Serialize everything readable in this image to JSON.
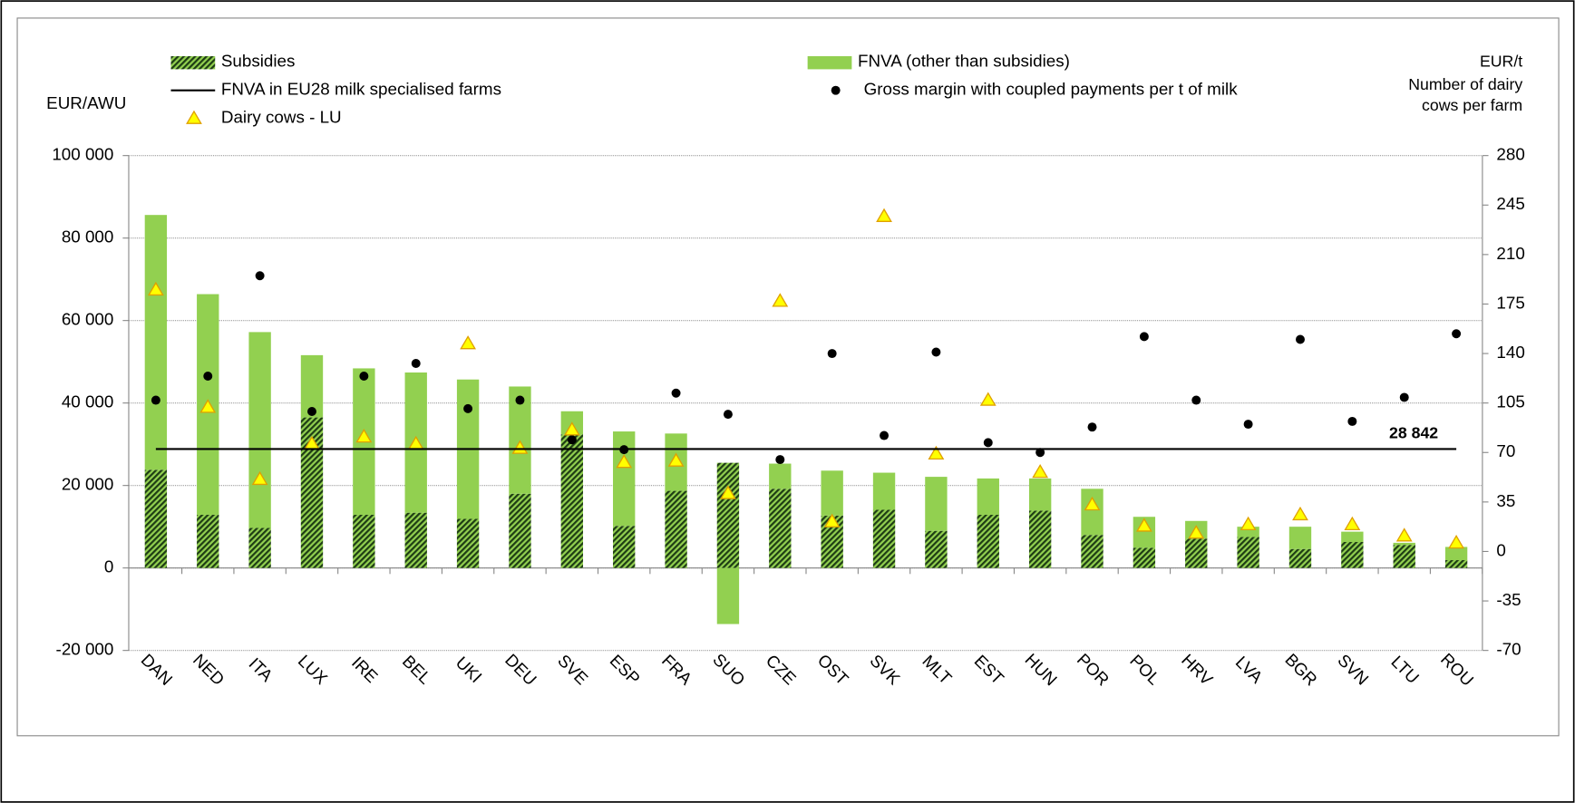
{
  "chart_data": {
    "type": "bar",
    "y_axis_label": "EUR/AWU",
    "y2_axis_label": [
      "EUR/t",
      "Number  of dairy",
      "cows per farm"
    ],
    "categories": [
      "DAN",
      "NED",
      "ITA",
      "LUX",
      "IRE",
      "BEL",
      "UKI",
      "DEU",
      "SVE",
      "ESP",
      "FRA",
      "SUO",
      "CZE",
      "OST",
      "SVK",
      "MLT",
      "EST",
      "HUN",
      "POR",
      "POL",
      "HRV",
      "LVA",
      "BGR",
      "SVN",
      "LTU",
      "ROU"
    ],
    "ylim": [
      -20000,
      100000
    ],
    "yticks": [
      {
        "value": -20000,
        "label": "-20 000"
      },
      0,
      {
        "value": 20000,
        "label": "20 000"
      },
      {
        "value": 40000,
        "label": "40 000"
      },
      {
        "value": 60000,
        "label": "60 000"
      },
      {
        "value": 80000,
        "label": "80 000"
      },
      {
        "value": 100000,
        "label": "100 000"
      }
    ],
    "y2lim": [
      -70,
      280
    ],
    "y2ticks": [
      -70,
      -35,
      0,
      35,
      70,
      105,
      140,
      175,
      210,
      245,
      280
    ],
    "grid": true,
    "series": [
      {
        "name": "Subsidies",
        "type": "bar",
        "color": "#92d050",
        "pattern": "diagonal-hatch",
        "values": [
          23800,
          12900,
          9700,
          36500,
          12900,
          13400,
          11900,
          18000,
          32400,
          10200,
          18700,
          25500,
          19200,
          12700,
          14100,
          9000,
          12900,
          13900,
          8000,
          4900,
          7100,
          7500,
          4600,
          6300,
          5600,
          1900
        ]
      },
      {
        "name": "FNVA (other than subsidies)",
        "type": "bar",
        "color": "#92d050",
        "values": [
          61800,
          53500,
          47500,
          15100,
          35500,
          34000,
          33800,
          26000,
          5600,
          22900,
          13900,
          -13600,
          6100,
          10900,
          9000,
          13100,
          8800,
          7800,
          11200,
          7500,
          4300,
          2500,
          5400,
          2500,
          500,
          3200
        ]
      },
      {
        "name": "Gross margin with coupled payments per t of milk",
        "type": "scatter",
        "marker": "circle",
        "axis": "y2",
        "color": "#000000",
        "values": [
          107,
          124,
          195,
          99,
          124,
          133,
          101,
          107,
          79,
          72,
          112,
          97,
          65,
          140,
          82,
          141,
          77,
          70,
          88,
          152,
          107,
          90,
          150,
          92,
          109,
          154
        ]
      },
      {
        "name": "Dairy cows - LU",
        "type": "scatter",
        "marker": "triangle",
        "axis": "y2",
        "color": "#ffff00",
        "values": [
          185,
          102,
          51,
          76,
          81,
          76,
          147,
          73,
          86,
          63,
          64,
          41,
          177,
          21,
          237,
          69,
          107,
          56,
          33,
          18,
          13,
          19,
          26,
          19,
          11,
          6
        ]
      }
    ],
    "reference_line": {
      "name": "FNVA in EU28 milk specialised farms",
      "color": "#000000",
      "value": 28842,
      "value_label": "28 842"
    }
  }
}
